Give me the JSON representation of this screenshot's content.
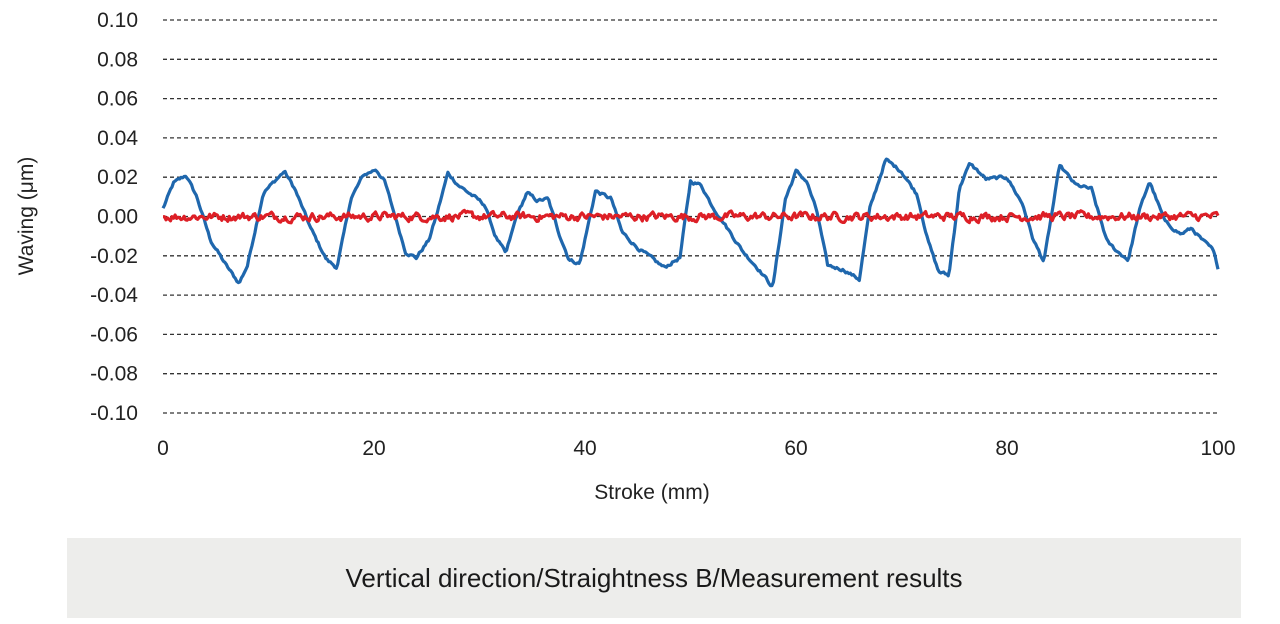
{
  "chart_data": {
    "type": "line",
    "xlabel": "Stroke (mm)",
    "ylabel": "Waving (μm)",
    "xlim": [
      0,
      100
    ],
    "ylim": [
      -0.1,
      0.1
    ],
    "x_ticks": [
      "0",
      "20",
      "40",
      "60",
      "80",
      "100"
    ],
    "y_ticks": [
      "0.10",
      "0.08",
      "0.06",
      "0.04",
      "0.02",
      "0.00",
      "-0.02",
      "-0.04",
      "-0.06",
      "-0.08",
      "-0.10"
    ],
    "grid": "dashed horizontal",
    "series": [
      {
        "color": "#1f67ad",
        "x": [
          0,
          1,
          2.2,
          3.2,
          4.5,
          6,
          7.2,
          8,
          9.5,
          11.5,
          12.5,
          14,
          15.5,
          16.5,
          17.8,
          19,
          20.2,
          21,
          22,
          23,
          24,
          25.2,
          26,
          27,
          28,
          29,
          30.5,
          31.5,
          32.5,
          33.5,
          34.5,
          35.5,
          36.5,
          37.5,
          38.5,
          39.5,
          41,
          42.5,
          43.5,
          45,
          46,
          47.5,
          49,
          50,
          51,
          52,
          53.5,
          55,
          56.5,
          57.8,
          59,
          60,
          61,
          62,
          63,
          64.5,
          66,
          67,
          68.5,
          70,
          71.5,
          72.5,
          73.5,
          74.5,
          75.5,
          76.5,
          78,
          80,
          81.5,
          82.5,
          83.5,
          85,
          86.5,
          88,
          89.5,
          90.5,
          91.5,
          92.5,
          93.5,
          95,
          96.5,
          97.5,
          98.5,
          99.5,
          100
        ],
        "y": [
          0.004,
          0.017,
          0.021,
          0.01,
          -0.012,
          -0.025,
          -0.034,
          -0.025,
          0.012,
          0.023,
          0.014,
          -0.006,
          -0.022,
          -0.026,
          0.009,
          0.021,
          0.024,
          0.018,
          0.0,
          -0.018,
          -0.021,
          -0.012,
          0.002,
          0.022,
          0.016,
          0.012,
          0.006,
          -0.01,
          -0.019,
          0.0,
          0.012,
          0.008,
          0.009,
          -0.008,
          -0.022,
          -0.024,
          0.013,
          0.009,
          -0.008,
          -0.016,
          -0.02,
          -0.026,
          -0.021,
          0.018,
          0.016,
          0.006,
          -0.006,
          -0.018,
          -0.027,
          -0.036,
          0.009,
          0.023,
          0.018,
          0.002,
          -0.025,
          -0.027,
          -0.032,
          0.004,
          0.029,
          0.023,
          0.011,
          -0.012,
          -0.028,
          -0.03,
          0.015,
          0.027,
          0.019,
          0.02,
          0.006,
          -0.012,
          -0.023,
          0.026,
          0.016,
          0.014,
          -0.013,
          -0.018,
          -0.022,
          0.002,
          0.018,
          -0.003,
          -0.009,
          -0.006,
          -0.012,
          -0.017,
          -0.026
        ]
      },
      {
        "color": "#dd1f26",
        "x": [
          0,
          100
        ],
        "y": [
          0.0,
          0.0
        ],
        "noise_amplitude": 0.004
      }
    ]
  },
  "caption": "Vertical direction/Straightness B/Measurement results",
  "colors": {
    "caption_bg": "#ededeb",
    "grid": "#333333"
  }
}
